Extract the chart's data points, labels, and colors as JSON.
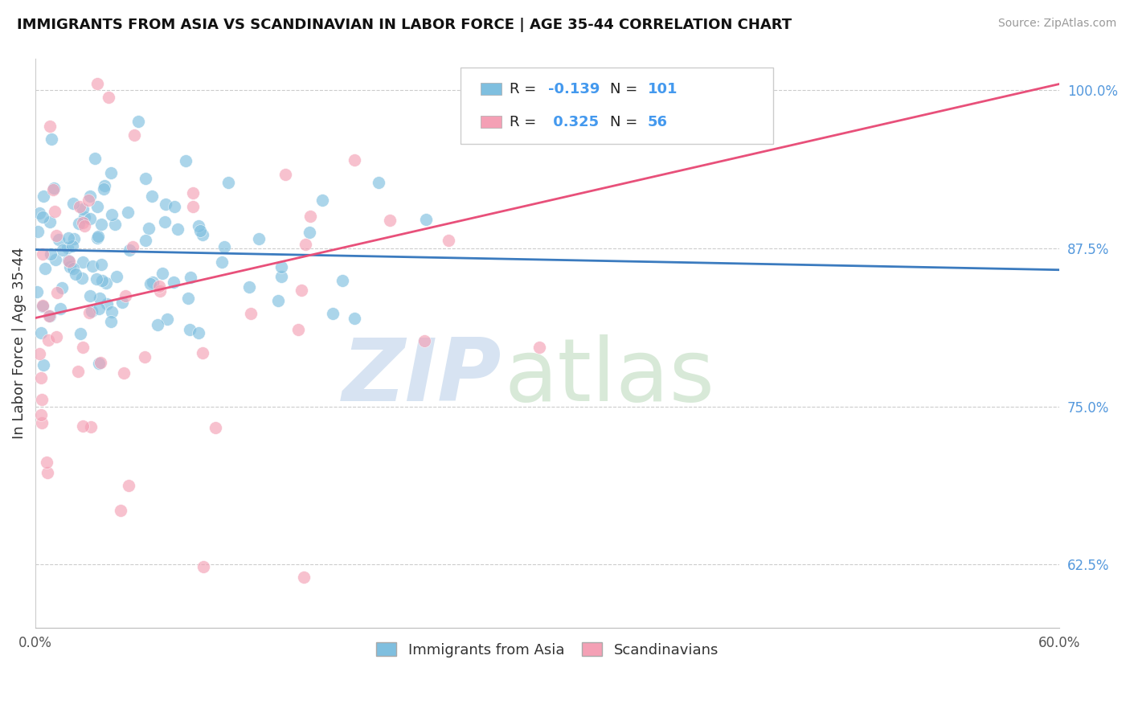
{
  "title": "IMMIGRANTS FROM ASIA VS SCANDINAVIAN IN LABOR FORCE | AGE 35-44 CORRELATION CHART",
  "source": "Source: ZipAtlas.com",
  "ylabel": "In Labor Force | Age 35-44",
  "x_min": 0.0,
  "x_max": 0.6,
  "y_min": 0.575,
  "y_max": 1.025,
  "y_ticks_right": [
    1.0,
    0.875,
    0.75,
    0.625
  ],
  "y_tick_labels_right": [
    "100.0%",
    "87.5%",
    "75.0%",
    "62.5%"
  ],
  "blue_R": -0.139,
  "blue_N": 101,
  "pink_R": 0.325,
  "pink_N": 56,
  "blue_color": "#7fbfdf",
  "pink_color": "#f4a0b5",
  "blue_line_color": "#3b7bbf",
  "pink_line_color": "#e8507a",
  "legend_blue_label": "Immigrants from Asia",
  "legend_pink_label": "Scandinavians",
  "blue_line_x0": 0.0,
  "blue_line_y0": 0.874,
  "blue_line_x1": 0.6,
  "blue_line_y1": 0.858,
  "pink_line_x0": 0.0,
  "pink_line_y0": 0.82,
  "pink_line_x1": 0.6,
  "pink_line_y1": 1.005
}
